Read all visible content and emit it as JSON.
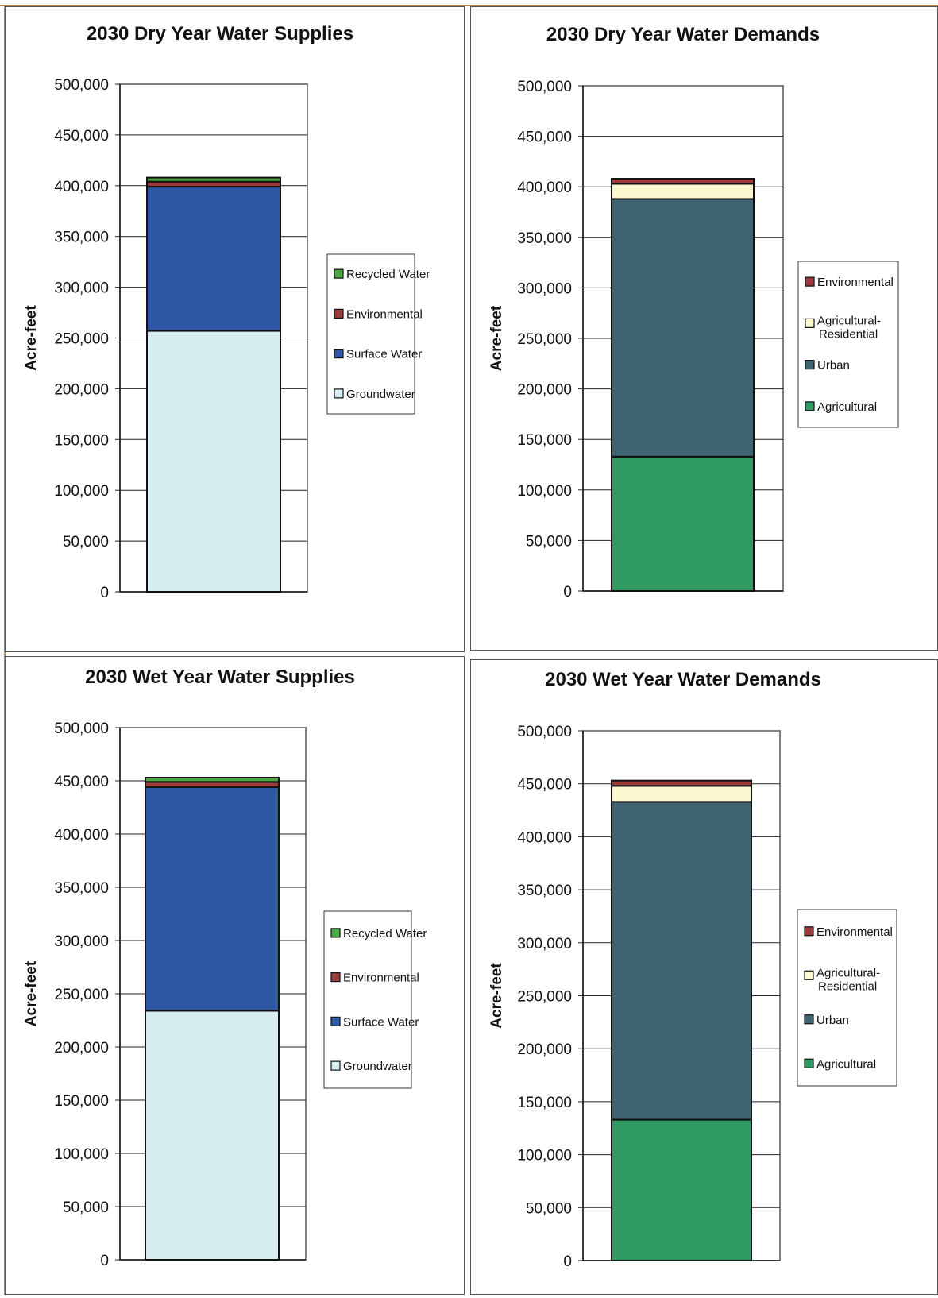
{
  "colors": {
    "groundwater": "#d5edf1",
    "surface_water": "#2e58a6",
    "environmental": "#9b3b3b",
    "recycled_water": "#49a842",
    "agricultural": "#2f9a61",
    "urban": "#3d6470",
    "agricultural_residential": "#fbf7cf",
    "grid": "#808080",
    "frame": "#c8833c"
  },
  "chart_data": [
    {
      "type": "bar",
      "stacked": true,
      "title": "2030 Dry Year Water Supplies",
      "ylabel": "Acre-feet",
      "xlabel": "",
      "ylim": [
        0,
        500000
      ],
      "yticks": [
        "0",
        "50,000",
        "100,000",
        "150,000",
        "200,000",
        "250,000",
        "300,000",
        "350,000",
        "400,000",
        "450,000",
        "500,000"
      ],
      "grid": true,
      "legend_position": "right",
      "series": [
        {
          "name": "Groundwater",
          "values": [
            257000
          ],
          "color": "#d5edf1"
        },
        {
          "name": "Surface Water",
          "values": [
            142000
          ],
          "color": "#2e58a6"
        },
        {
          "name": "Environmental",
          "values": [
            5000
          ],
          "color": "#9b3b3b"
        },
        {
          "name": "Recycled Water",
          "values": [
            4000
          ],
          "color": "#49a842"
        }
      ],
      "legend_order": [
        "Recycled Water",
        "Environmental",
        "Surface Water",
        "Groundwater"
      ]
    },
    {
      "type": "bar",
      "stacked": true,
      "title": "2030 Dry Year Water Demands",
      "ylabel": "Acre-feet",
      "xlabel": "",
      "ylim": [
        0,
        500000
      ],
      "yticks": [
        "0",
        "50,000",
        "100,000",
        "150,000",
        "200,000",
        "250,000",
        "300,000",
        "350,000",
        "400,000",
        "450,000",
        "500,000"
      ],
      "grid": true,
      "legend_position": "right",
      "series": [
        {
          "name": "Agricultural",
          "values": [
            133000
          ],
          "color": "#2f9a61"
        },
        {
          "name": "Urban",
          "values": [
            255000
          ],
          "color": "#3d6470"
        },
        {
          "name": "Agricultural-Residential",
          "values": [
            15000
          ],
          "color": "#fbf7cf"
        },
        {
          "name": "Environmental",
          "values": [
            5000
          ],
          "color": "#9b3b3b"
        }
      ],
      "legend_order": [
        "Environmental",
        "Agricultural-Residential",
        "Urban",
        "Agricultural"
      ]
    },
    {
      "type": "bar",
      "stacked": true,
      "title": "2030 Wet Year Water Supplies",
      "ylabel": "Acre-feet",
      "xlabel": "",
      "ylim": [
        0,
        500000
      ],
      "yticks": [
        "0",
        "50,000",
        "100,000",
        "150,000",
        "200,000",
        "250,000",
        "300,000",
        "350,000",
        "400,000",
        "450,000",
        "500,000"
      ],
      "grid": true,
      "legend_position": "right",
      "series": [
        {
          "name": "Groundwater",
          "values": [
            234000
          ],
          "color": "#d5edf1"
        },
        {
          "name": "Surface Water",
          "values": [
            210000
          ],
          "color": "#2e58a6"
        },
        {
          "name": "Environmental",
          "values": [
            5000
          ],
          "color": "#9b3b3b"
        },
        {
          "name": "Recycled Water",
          "values": [
            4000
          ],
          "color": "#49a842"
        }
      ],
      "legend_order": [
        "Recycled Water",
        "Environmental",
        "Surface Water",
        "Groundwater"
      ]
    },
    {
      "type": "bar",
      "stacked": true,
      "title": "2030 Wet Year Water Demands",
      "ylabel": "Acre-feet",
      "xlabel": "",
      "ylim": [
        0,
        500000
      ],
      "yticks": [
        "0",
        "50,000",
        "100,000",
        "150,000",
        "200,000",
        "250,000",
        "300,000",
        "350,000",
        "400,000",
        "450,000",
        "500,000"
      ],
      "grid": true,
      "legend_position": "right",
      "series": [
        {
          "name": "Agricultural",
          "values": [
            133000
          ],
          "color": "#2f9a61"
        },
        {
          "name": "Urban",
          "values": [
            300000
          ],
          "color": "#3d6470"
        },
        {
          "name": "Agricultural-Residential",
          "values": [
            15000
          ],
          "color": "#fbf7cf"
        },
        {
          "name": "Environmental",
          "values": [
            5000
          ],
          "color": "#9b3b3b"
        }
      ],
      "legend_order": [
        "Environmental",
        "Agricultural-Residential",
        "Urban",
        "Agricultural"
      ]
    }
  ]
}
